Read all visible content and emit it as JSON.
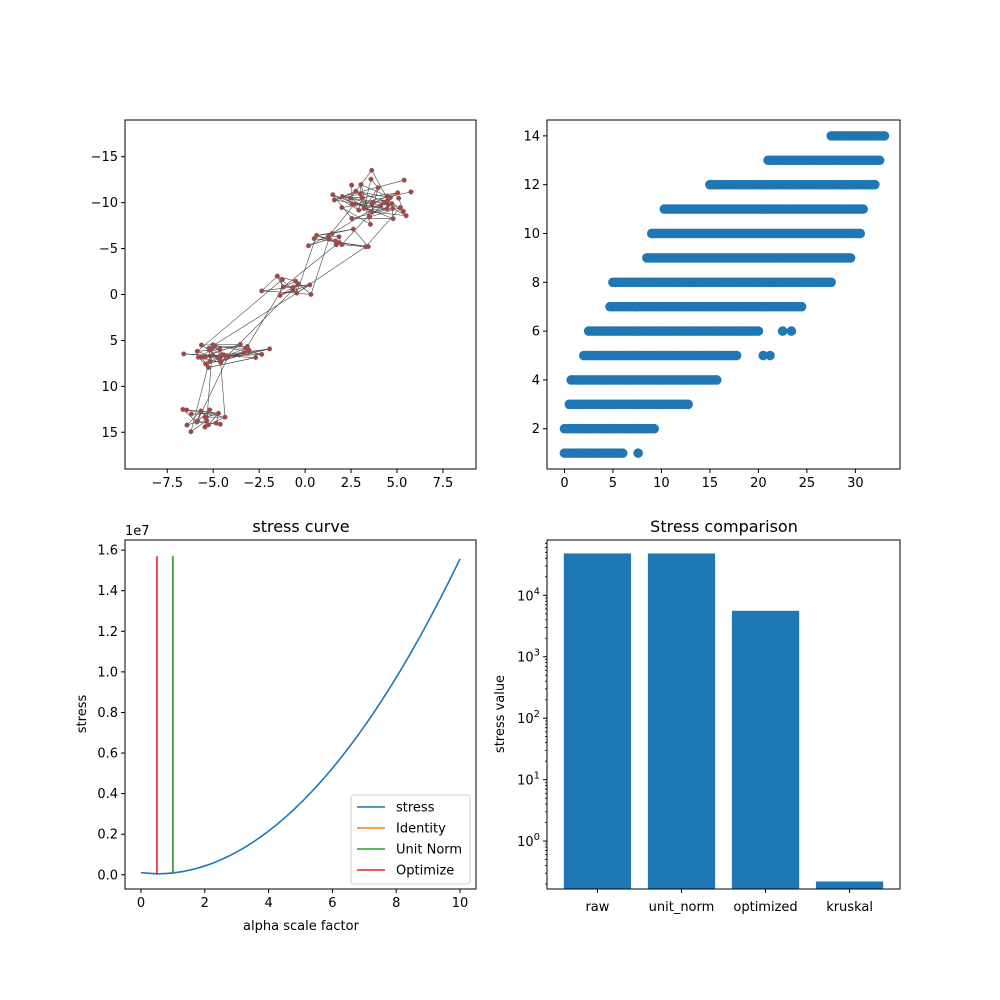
{
  "chart_data": [
    {
      "type": "network",
      "xlim": [
        -9.8,
        9.3
      ],
      "ylim": [
        19,
        -19
      ],
      "x_ticks": [
        "−7.5",
        "−5.0",
        "−2.5",
        "0.0",
        "2.5",
        "5.0",
        "7.5"
      ],
      "x_tick_values": [
        -7.5,
        -5,
        -2.5,
        0,
        2.5,
        5,
        7.5
      ],
      "y_ticks": [
        "−15",
        "−10",
        "−5",
        "0",
        "5",
        "10",
        "15"
      ],
      "y_tick_values": [
        -15,
        -10,
        -5,
        0,
        5,
        10,
        15
      ],
      "clusters": [
        {
          "cx": 4.0,
          "cy": -10.2,
          "n": 40,
          "sx": 2.2,
          "sy": 2.3
        },
        {
          "cx": 2.0,
          "cy": -6.0,
          "n": 14,
          "sx": 1.6,
          "sy": 1.0
        },
        {
          "cx": -1.5,
          "cy": -1.0,
          "n": 12,
          "sx": 2.2,
          "sy": 1.2
        },
        {
          "cx": -4.5,
          "cy": 6.3,
          "n": 32,
          "sx": 2.2,
          "sy": 1.2
        },
        {
          "cx": -5.5,
          "cy": 13.5,
          "n": 18,
          "sx": 1.1,
          "sy": 1.2
        }
      ],
      "colors": {
        "node": "#a94444",
        "edge": "#444444"
      }
    },
    {
      "type": "scatter",
      "xlim": [
        -1.8,
        34.6
      ],
      "ylim": [
        0.35,
        14.65
      ],
      "x_ticks": [
        "0",
        "5",
        "10",
        "15",
        "20",
        "25",
        "30"
      ],
      "x_tick_values": [
        0,
        5,
        10,
        15,
        20,
        25,
        30
      ],
      "y_ticks": [
        "2",
        "4",
        "6",
        "8",
        "10",
        "12",
        "14"
      ],
      "y_tick_values": [
        2,
        4,
        6,
        8,
        10,
        12,
        14
      ],
      "rows": [
        {
          "y": 1,
          "x_start": 0.0,
          "x_end": 6.0,
          "extra": [
            7.6
          ]
        },
        {
          "y": 2,
          "x_start": 0.0,
          "x_end": 9.3,
          "extra": []
        },
        {
          "y": 3,
          "x_start": 0.5,
          "x_end": 12.8,
          "extra": []
        },
        {
          "y": 4,
          "x_start": 0.7,
          "x_end": 15.8,
          "extra": []
        },
        {
          "y": 5,
          "x_start": 2.0,
          "x_end": 17.8,
          "extra": [
            20.5,
            21.2
          ]
        },
        {
          "y": 6,
          "x_start": 2.5,
          "x_end": 20.0,
          "extra": [
            22.5,
            23.4
          ]
        },
        {
          "y": 7,
          "x_start": 4.7,
          "x_end": 24.5,
          "extra": []
        },
        {
          "y": 8,
          "x_start": 5.0,
          "x_end": 27.5,
          "extra": []
        },
        {
          "y": 9,
          "x_start": 8.5,
          "x_end": 29.5,
          "extra": []
        },
        {
          "y": 10,
          "x_start": 9.0,
          "x_end": 30.5,
          "extra": []
        },
        {
          "y": 11,
          "x_start": 10.3,
          "x_end": 31.0,
          "extra": []
        },
        {
          "y": 12,
          "x_start": 15.0,
          "x_end": 32.0,
          "extra": []
        },
        {
          "y": 13,
          "x_start": 21.0,
          "x_end": 32.5,
          "extra": []
        },
        {
          "y": 14,
          "x_start": 27.5,
          "x_end": 33.0,
          "extra": []
        }
      ],
      "colors": {
        "marker": "#1f77b4"
      }
    },
    {
      "type": "line",
      "title": "stress curve",
      "xlabel": "alpha scale factor",
      "ylabel": "stress",
      "offset_text": "1e7",
      "xlim": [
        -0.5,
        10.5
      ],
      "ylim": [
        -0.7,
        16.5
      ],
      "x_ticks": [
        "0",
        "2",
        "4",
        "6",
        "8",
        "10"
      ],
      "x_tick_values": [
        0,
        2,
        4,
        6,
        8,
        10
      ],
      "y_ticks": [
        "0.0",
        "0.2",
        "0.4",
        "0.6",
        "0.8",
        "1.0",
        "1.2",
        "1.4",
        "1.6"
      ],
      "y_tick_values": [
        0,
        2,
        4,
        6,
        8,
        10,
        12,
        14,
        16
      ],
      "stress_curve": {
        "a": 0.172,
        "min_x": 0.5,
        "min_y": 0.05,
        "x0_y": 0.1
      },
      "vlines": [
        {
          "name": "Identity",
          "x": 1.0,
          "y0": 0.05,
          "y1": 15.7,
          "color": "#ff7f0e"
        },
        {
          "name": "Unit Norm",
          "x": 1.0,
          "y0": 0.05,
          "y1": 15.7,
          "color": "#2ca02c"
        },
        {
          "name": "Optimize",
          "x": 0.5,
          "y0": 0.05,
          "y1": 15.7,
          "color": "#d62728"
        }
      ],
      "legend": [
        {
          "name": "stress",
          "color": "#1f77b4"
        },
        {
          "name": "Identity",
          "color": "#ff7f0e"
        },
        {
          "name": "Unit Norm",
          "color": "#2ca02c"
        },
        {
          "name": "Optimize",
          "color": "#d62728"
        }
      ],
      "legend_position": "lower-right"
    },
    {
      "type": "bar",
      "title": "Stress comparison",
      "ylabel": "stress value",
      "yscale": "log",
      "ylim_log10": [
        -0.78,
        4.9
      ],
      "categories": [
        "raw",
        "unit_norm",
        "optimized",
        "kruskal"
      ],
      "values": [
        48000,
        48000,
        5600,
        0.22
      ],
      "y_ticks": [
        {
          "base": "10",
          "exp": "0",
          "value": 0
        },
        {
          "base": "10",
          "exp": "1",
          "value": 1
        },
        {
          "base": "10",
          "exp": "2",
          "value": 2
        },
        {
          "base": "10",
          "exp": "3",
          "value": 3
        },
        {
          "base": "10",
          "exp": "4",
          "value": 4
        }
      ],
      "colors": {
        "bar": "#1f77b4"
      }
    }
  ]
}
